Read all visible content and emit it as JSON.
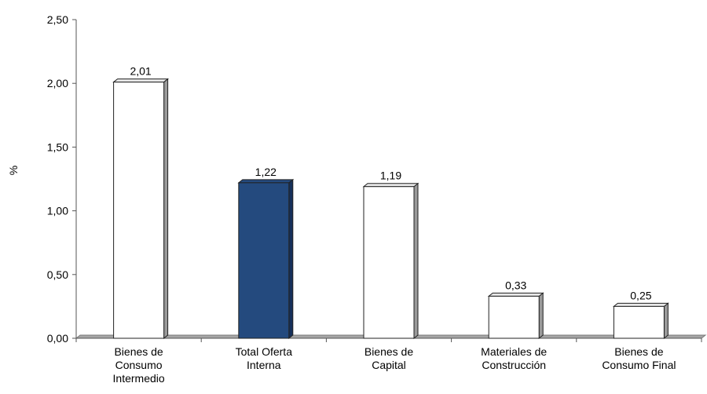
{
  "chart_data": {
    "type": "bar",
    "ylabel": "%",
    "ylim": [
      0,
      2.5
    ],
    "yticks": [
      "0,00",
      "0,50",
      "1,00",
      "1,50",
      "2,00",
      "2,50"
    ],
    "grid": false,
    "categories": [
      [
        "Bienes de",
        "Consumo",
        "Intermedio"
      ],
      [
        "Total Oferta",
        "Interna"
      ],
      [
        "Bienes de",
        "Capital"
      ],
      [
        "Materiales de",
        "Construcción"
      ],
      [
        "Bienes de",
        "Consumo Final"
      ]
    ],
    "values": [
      2.01,
      1.22,
      1.19,
      0.33,
      0.25
    ],
    "value_labels": [
      "2,01",
      "1,22",
      "1,19",
      "0,33",
      "0,25"
    ],
    "highlight_index": 1,
    "colors": {
      "bar_fill": "#ffffff",
      "bar_highlight": "#244a7e",
      "bar_edge": "#222222",
      "bar_side": "#9a9a9a",
      "bar_side_highlight": "#16305a",
      "floor": "#a6a6a6"
    }
  }
}
